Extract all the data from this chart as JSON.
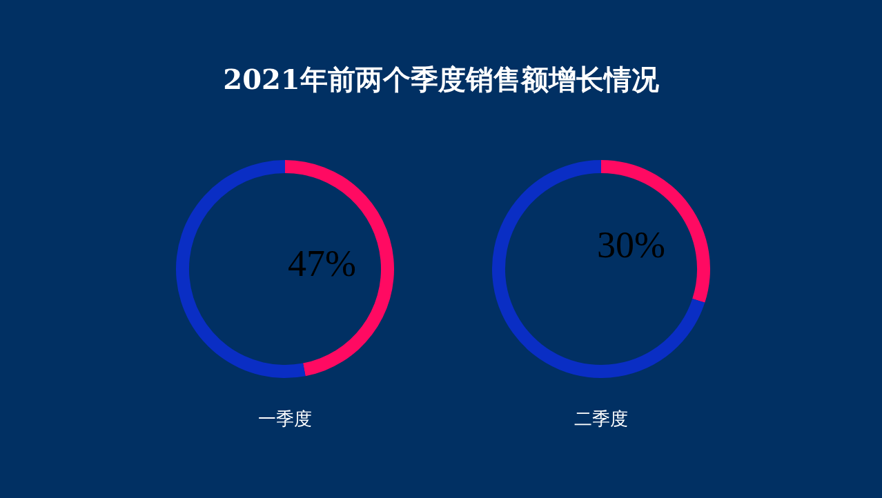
{
  "chart_data": [
    {
      "type": "donut",
      "title": "2021年前两个季度销售额增长情况",
      "xlabel": "一季度",
      "categories": [
        null,
        null
      ],
      "values": [
        47,
        53
      ],
      "colors": [
        "#ff0a62",
        "#0a2ec4"
      ],
      "value_labels": [
        "47%",
        null
      ]
    },
    {
      "type": "donut",
      "xlabel": "二季度",
      "categories": [
        null,
        null
      ],
      "values": [
        30,
        70
      ],
      "colors": [
        "#ff0a62",
        "#0a2ec4"
      ],
      "value_labels": [
        "30%",
        null
      ]
    }
  ]
}
